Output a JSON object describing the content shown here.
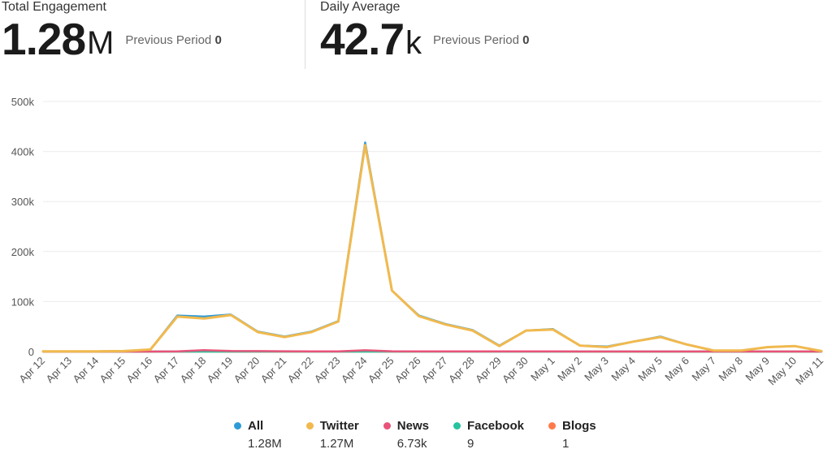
{
  "kpis": {
    "total": {
      "label": "Total Engagement",
      "value": "1.28",
      "unit": "M",
      "prev_label": "Previous Period",
      "prev_value": "0"
    },
    "daily": {
      "label": "Daily Average",
      "value": "42.7",
      "unit": "k",
      "prev_label": "Previous Period",
      "prev_value": "0"
    }
  },
  "chart_data": {
    "type": "line",
    "title": "",
    "xlabel": "",
    "ylabel": "",
    "ylim": [
      0,
      500000
    ],
    "yticks": [
      "0",
      "100k",
      "200k",
      "300k",
      "400k",
      "500k"
    ],
    "grid": true,
    "legend_position": "bottom",
    "categories": [
      "Apr 12",
      "Apr 13",
      "Apr 14",
      "Apr 15",
      "Apr 16",
      "Apr 17",
      "Apr 18",
      "Apr 19",
      "Apr 20",
      "Apr 21",
      "Apr 22",
      "Apr 23",
      "Apr 24",
      "Apr 25",
      "Apr 26",
      "Apr 27",
      "Apr 28",
      "Apr 29",
      "Apr 30",
      "May 1",
      "May 2",
      "May 3",
      "May 4",
      "May 5",
      "May 6",
      "May 7",
      "May 8",
      "May 9",
      "May 10",
      "May 11"
    ],
    "series": [
      {
        "name": "All",
        "color": "#2e9bd6",
        "total": "1.28M",
        "values": [
          500,
          500,
          500,
          1000,
          4000,
          72000,
          70000,
          74000,
          40000,
          30000,
          40000,
          61000,
          418000,
          122000,
          72000,
          55000,
          43000,
          12000,
          42000,
          45000,
          12000,
          10000,
          20000,
          30000,
          14000,
          2000,
          2000,
          9000,
          11000,
          1000
        ]
      },
      {
        "name": "Twitter",
        "color": "#f1b94e",
        "total": "1.27M",
        "values": [
          500,
          500,
          500,
          1000,
          4000,
          70000,
          66000,
          73000,
          39000,
          29000,
          39000,
          60000,
          413000,
          122000,
          71000,
          54000,
          42000,
          11000,
          42000,
          44000,
          12000,
          9000,
          20000,
          29000,
          14000,
          2000,
          2000,
          9000,
          11000,
          1000
        ]
      },
      {
        "name": "News",
        "color": "#e8537a",
        "total": "6.73k",
        "values": [
          0,
          0,
          0,
          0,
          0,
          500,
          2800,
          1200,
          900,
          700,
          500,
          500,
          2600,
          700,
          300,
          300,
          500,
          300,
          300,
          300,
          200,
          200,
          200,
          200,
          200,
          100,
          100,
          100,
          100,
          100
        ]
      },
      {
        "name": "Facebook",
        "color": "#27c29e",
        "total": "9",
        "values": [
          0,
          0,
          0,
          0,
          0,
          0,
          0,
          0,
          0,
          0,
          0,
          0,
          0,
          0,
          0,
          0,
          0,
          0,
          0,
          0,
          0,
          0,
          0,
          0,
          0,
          0,
          0,
          0,
          0,
          0
        ]
      },
      {
        "name": "Blogs",
        "color": "#ff7a4a",
        "total": "1",
        "values": [
          0,
          0,
          0,
          0,
          0,
          0,
          0,
          0,
          0,
          0,
          0,
          0,
          0,
          0,
          0,
          0,
          0,
          0,
          0,
          0,
          0,
          0,
          0,
          0,
          0,
          0,
          0,
          0,
          0,
          0
        ]
      }
    ]
  }
}
